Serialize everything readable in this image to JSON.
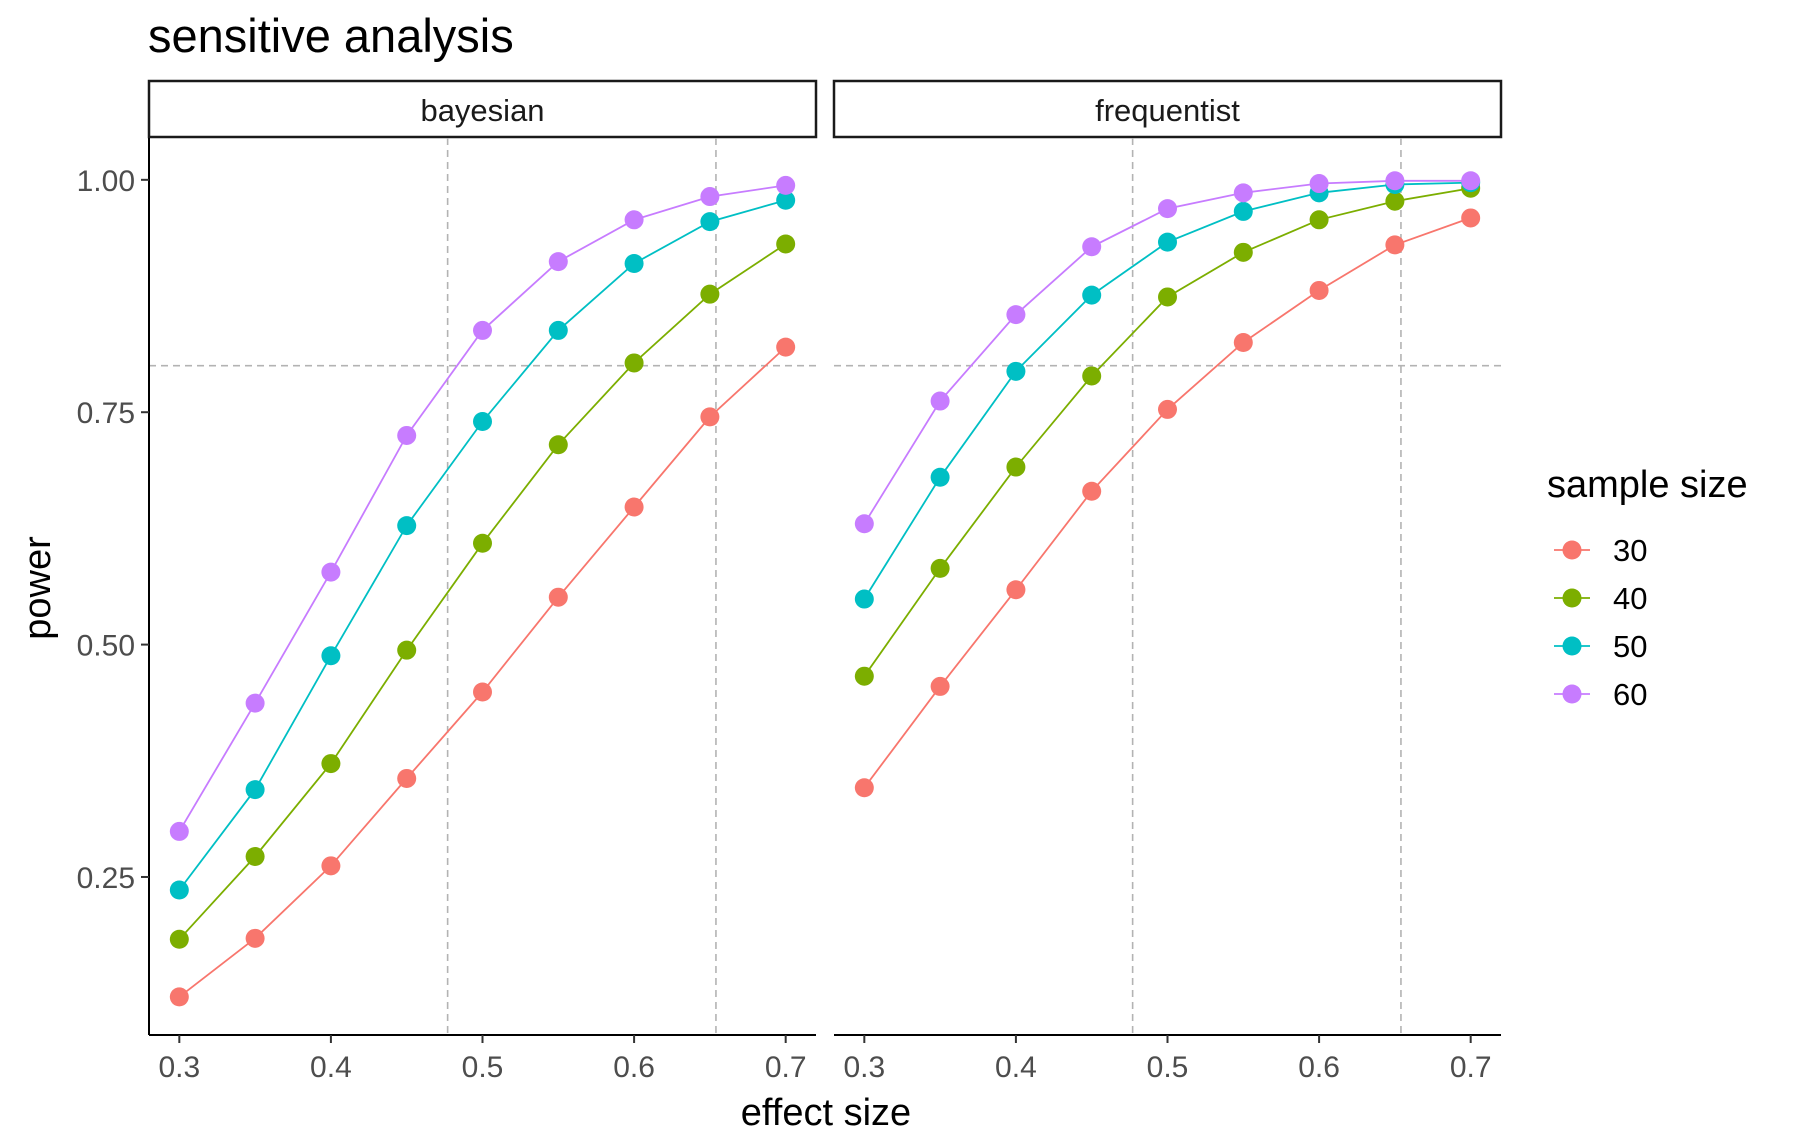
{
  "chart_data": {
    "type": "line",
    "title": "sensitive analysis",
    "xlabel": "effect size",
    "ylabel": "power",
    "xlim": [
      0.28,
      0.72
    ],
    "ylim": [
      0.08,
      1.045
    ],
    "x_ticks": [
      0.3,
      0.4,
      0.5,
      0.6,
      0.7
    ],
    "x_tick_labels": [
      "0.3",
      "0.4",
      "0.5",
      "0.6",
      "0.7"
    ],
    "y_ticks": [
      0.25,
      0.5,
      0.75,
      1.0
    ],
    "y_tick_labels": [
      "0.25",
      "0.50",
      "0.75",
      "1.00"
    ],
    "grid": false,
    "legend": {
      "title": "sample size",
      "position": "right",
      "entries": [
        {
          "label": "30",
          "color": "#F8766D"
        },
        {
          "label": "40",
          "color": "#7CAE00"
        },
        {
          "label": "50",
          "color": "#00BFC4"
        },
        {
          "label": "60",
          "color": "#C77CFF"
        }
      ]
    },
    "reference_lines": {
      "horizontal": [
        0.8
      ],
      "vertical": [
        0.477,
        0.654
      ],
      "style": "dashed",
      "color": "#b3b3b3"
    },
    "x": [
      0.3,
      0.35,
      0.4,
      0.45,
      0.5,
      0.55,
      0.6,
      0.65,
      0.7
    ],
    "panels": [
      {
        "name": "bayesian",
        "series": [
          {
            "name": "30",
            "color": "#F8766D",
            "values": [
              0.121,
              0.184,
              0.262,
              0.356,
              0.449,
              0.551,
              0.648,
              0.745,
              0.82
            ]
          },
          {
            "name": "40",
            "color": "#7CAE00",
            "values": [
              0.183,
              0.272,
              0.372,
              0.494,
              0.609,
              0.715,
              0.803,
              0.877,
              0.931
            ]
          },
          {
            "name": "50",
            "color": "#00BFC4",
            "values": [
              0.236,
              0.344,
              0.488,
              0.628,
              0.74,
              0.838,
              0.91,
              0.955,
              0.978
            ]
          },
          {
            "name": "60",
            "color": "#C77CFF",
            "values": [
              0.299,
              0.437,
              0.578,
              0.725,
              0.838,
              0.912,
              0.957,
              0.982,
              0.994
            ]
          }
        ]
      },
      {
        "name": "frequentist",
        "series": [
          {
            "name": "30",
            "color": "#F8766D",
            "values": [
              0.346,
              0.455,
              0.559,
              0.665,
              0.753,
              0.825,
              0.881,
              0.93,
              0.959
            ]
          },
          {
            "name": "40",
            "color": "#7CAE00",
            "values": [
              0.466,
              0.582,
              0.691,
              0.789,
              0.874,
              0.922,
              0.957,
              0.977,
              0.991
            ]
          },
          {
            "name": "50",
            "color": "#00BFC4",
            "values": [
              0.549,
              0.68,
              0.794,
              0.876,
              0.933,
              0.966,
              0.986,
              0.995,
              0.997
            ]
          },
          {
            "name": "60",
            "color": "#C77CFF",
            "values": [
              0.63,
              0.762,
              0.855,
              0.928,
              0.969,
              0.986,
              0.996,
              0.999,
              0.999
            ]
          }
        ]
      }
    ]
  }
}
